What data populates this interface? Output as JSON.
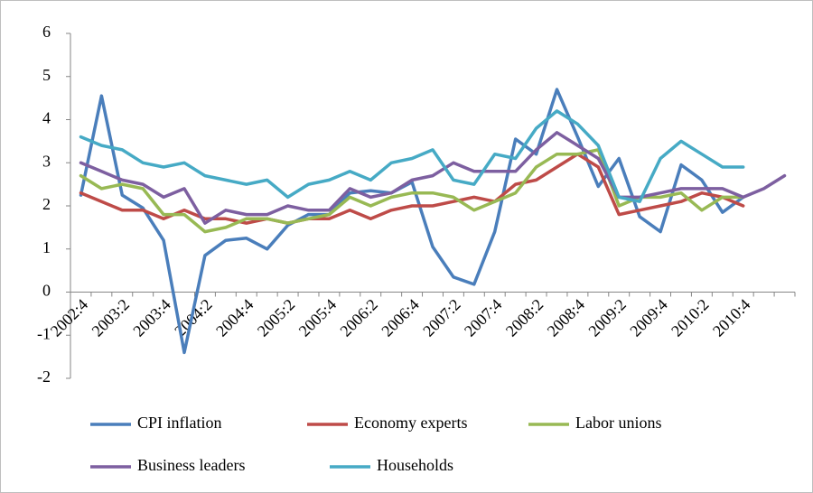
{
  "chart_data": {
    "type": "line",
    "categories": [
      "2002:4",
      null,
      "2003:2",
      null,
      "2003:4",
      null,
      "2004:2",
      null,
      "2004:4",
      null,
      "2005:2",
      null,
      "2005:4",
      null,
      "2006:2",
      null,
      "2006:4",
      null,
      "2007:2",
      null,
      "2007:4",
      null,
      "2008:2",
      null,
      "2008:4",
      null,
      "2009:2",
      null,
      "2009:4",
      null,
      "2010:2",
      null,
      "2010:4",
      null,
      null
    ],
    "series": [
      {
        "name": "CPI inflation",
        "color": "#4a7ebb",
        "values": [
          2.25,
          4.55,
          2.25,
          1.95,
          1.2,
          -1.4,
          0.85,
          1.2,
          1.25,
          1.0,
          1.55,
          1.8,
          1.8,
          2.3,
          2.35,
          2.3,
          2.55,
          1.05,
          0.35,
          0.18,
          1.4,
          3.55,
          3.2,
          4.7,
          3.6,
          2.45,
          3.1,
          1.75,
          1.4,
          2.95,
          2.6,
          1.85,
          2.2,
          null,
          null
        ]
      },
      {
        "name": "Economy experts",
        "color": "#be4b48",
        "values": [
          2.3,
          2.1,
          1.9,
          1.9,
          1.7,
          1.9,
          1.7,
          1.7,
          1.6,
          1.7,
          1.6,
          1.7,
          1.7,
          1.9,
          1.7,
          1.9,
          2.0,
          2.0,
          2.1,
          2.2,
          2.1,
          2.5,
          2.6,
          2.9,
          3.2,
          2.9,
          1.8,
          1.9,
          2.0,
          2.1,
          2.3,
          2.2,
          2.0,
          null,
          null
        ]
      },
      {
        "name": "Labor unions",
        "color": "#98b954",
        "values": [
          2.7,
          2.4,
          2.5,
          2.4,
          1.8,
          1.8,
          1.4,
          1.5,
          1.7,
          1.7,
          1.6,
          1.7,
          1.8,
          2.2,
          2.0,
          2.2,
          2.3,
          2.3,
          2.2,
          1.9,
          2.1,
          2.3,
          2.9,
          3.2,
          3.2,
          3.3,
          2.0,
          2.2,
          2.2,
          2.3,
          1.9,
          2.2,
          2.2,
          null,
          null
        ]
      },
      {
        "name": "Business leaders",
        "color": "#7d5fa0",
        "values": [
          3.0,
          2.8,
          2.6,
          2.5,
          2.2,
          2.4,
          1.6,
          1.9,
          1.8,
          1.8,
          2.0,
          1.9,
          1.9,
          2.4,
          2.2,
          2.3,
          2.6,
          2.7,
          3.0,
          2.8,
          2.8,
          2.8,
          3.3,
          3.7,
          3.4,
          3.1,
          2.2,
          2.2,
          2.3,
          2.4,
          2.4,
          2.4,
          2.2,
          2.4,
          2.7
        ]
      },
      {
        "name": "Households",
        "color": "#46aac5",
        "values": [
          3.6,
          3.4,
          3.3,
          3.0,
          2.9,
          3.0,
          2.7,
          2.6,
          2.5,
          2.6,
          2.2,
          2.5,
          2.6,
          2.8,
          2.6,
          3.0,
          3.1,
          3.3,
          2.6,
          2.5,
          3.2,
          3.1,
          3.8,
          4.2,
          3.9,
          3.4,
          2.2,
          2.1,
          3.1,
          3.5,
          3.2,
          2.9,
          2.9,
          null,
          null
        ]
      }
    ],
    "ylim": [
      -2,
      6
    ],
    "yticks": [
      -2,
      -1,
      0,
      1,
      2,
      3,
      4,
      5,
      6
    ],
    "grid": false,
    "legend": "bottom"
  }
}
